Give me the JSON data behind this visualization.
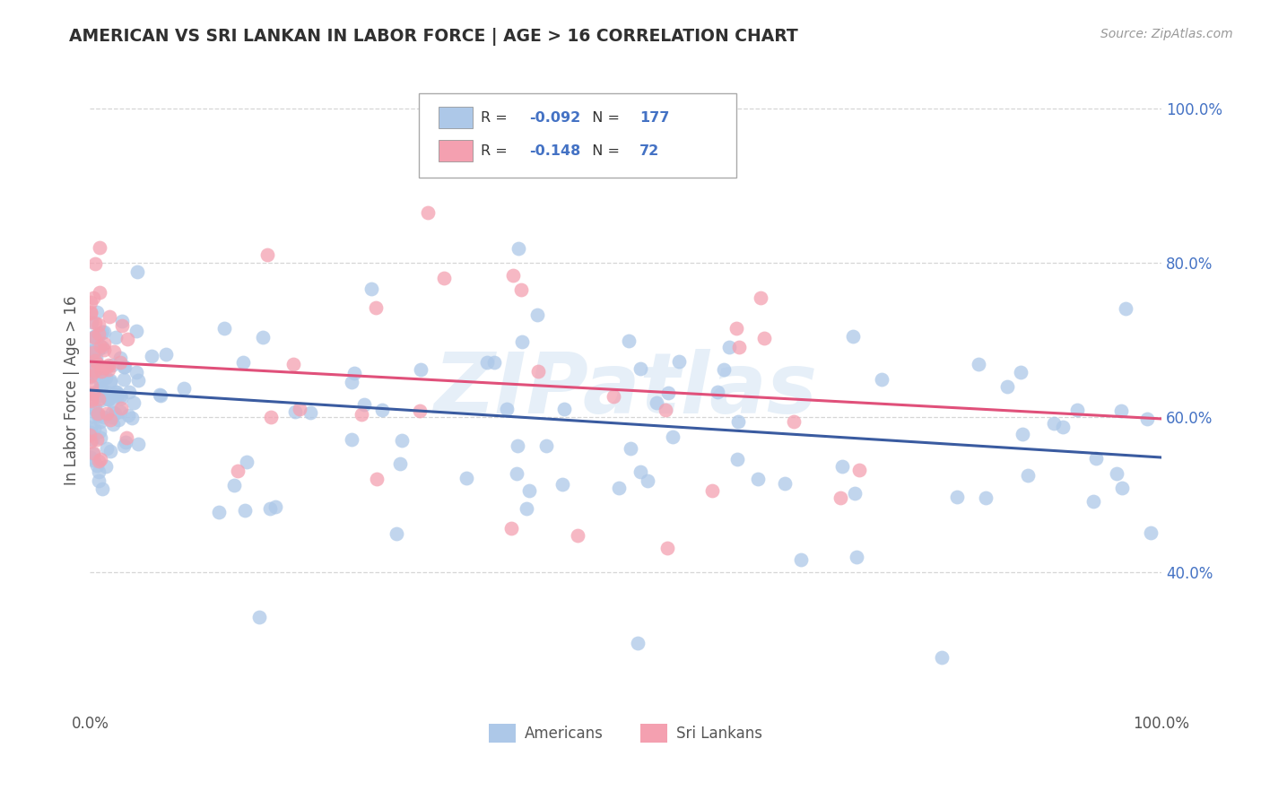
{
  "title": "AMERICAN VS SRI LANKAN IN LABOR FORCE | AGE > 16 CORRELATION CHART",
  "source": "Source: ZipAtlas.com",
  "ylabel": "In Labor Force | Age > 16",
  "xlim": [
    0.0,
    1.0
  ],
  "ylim": [
    0.22,
    1.05
  ],
  "x_tick_labels": [
    "0.0%",
    "100.0%"
  ],
  "y_ticks": [
    0.4,
    0.6,
    0.8,
    1.0
  ],
  "y_tick_labels": [
    "40.0%",
    "60.0%",
    "80.0%",
    "100.0%"
  ],
  "american_R": -0.092,
  "american_N": 177,
  "srilankan_R": -0.148,
  "srilankan_N": 72,
  "american_color": "#adc8e8",
  "srilankan_color": "#f4a0b0",
  "american_line_color": "#3a5ba0",
  "srilankan_line_color": "#e0507a",
  "background_color": "#ffffff",
  "grid_color": "#cccccc",
  "title_color": "#303030",
  "legend_R_color": "#4472c4",
  "legend_label_american": "Americans",
  "legend_label_srilankan": "Sri Lankans",
  "watermark": "ZIPatlas",
  "am_line_x0": 0.0,
  "am_line_y0": 0.635,
  "am_line_x1": 1.0,
  "am_line_y1": 0.548,
  "sl_line_x0": 0.0,
  "sl_line_y0": 0.672,
  "sl_line_x1": 1.0,
  "sl_line_y1": 0.598
}
